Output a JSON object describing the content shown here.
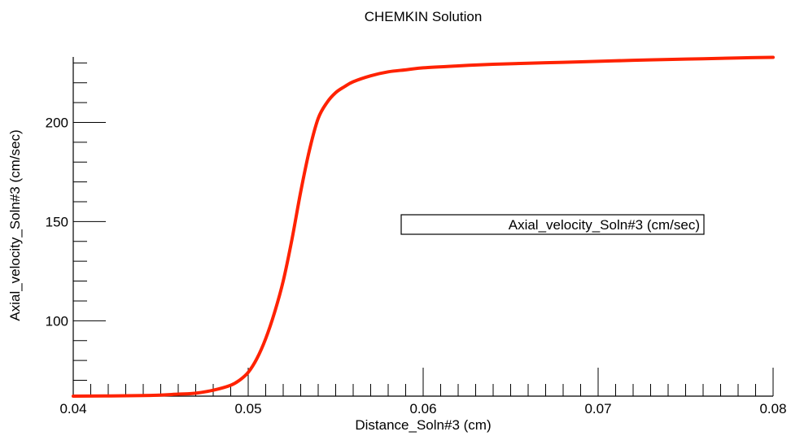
{
  "chart_data": {
    "type": "line",
    "title": "CHEMKIN Solution",
    "xlabel": "Distance_Soln#3 (cm)",
    "ylabel": "Axial_velocity_Soln#3 (cm/sec)",
    "xlim": [
      0.04,
      0.08
    ],
    "ylim": [
      62,
      233
    ],
    "x_ticks": [
      0.04,
      0.05,
      0.06,
      0.07,
      0.08
    ],
    "x_tick_labels": [
      "0.04",
      "0.05",
      "0.06",
      "0.07",
      "0.08"
    ],
    "y_ticks": [
      100,
      150,
      200
    ],
    "y_tick_labels": [
      "100",
      "150",
      "200"
    ],
    "grid": false,
    "legend_position": "center-right",
    "series": [
      {
        "name": "Axial_velocity_Soln#3 (cm/sec)",
        "color": "#ff2200",
        "x": [
          0.04,
          0.044,
          0.046,
          0.047,
          0.048,
          0.049,
          0.0495,
          0.05,
          0.0505,
          0.051,
          0.0515,
          0.052,
          0.0525,
          0.053,
          0.0535,
          0.054,
          0.0545,
          0.055,
          0.0555,
          0.056,
          0.057,
          0.058,
          0.059,
          0.06,
          0.062,
          0.064,
          0.066,
          0.068,
          0.07,
          0.072,
          0.074,
          0.076,
          0.078,
          0.08
        ],
        "y": [
          62,
          62.3,
          63,
          63.5,
          65,
          67.5,
          70,
          74,
          81,
          91,
          104,
          120,
          141,
          165,
          186,
          202,
          210,
          215,
          218,
          220.5,
          223.5,
          225.5,
          226.5,
          227.5,
          228.5,
          229.3,
          229.8,
          230.3,
          230.8,
          231.3,
          231.7,
          232.1,
          232.5,
          232.8
        ]
      }
    ]
  }
}
